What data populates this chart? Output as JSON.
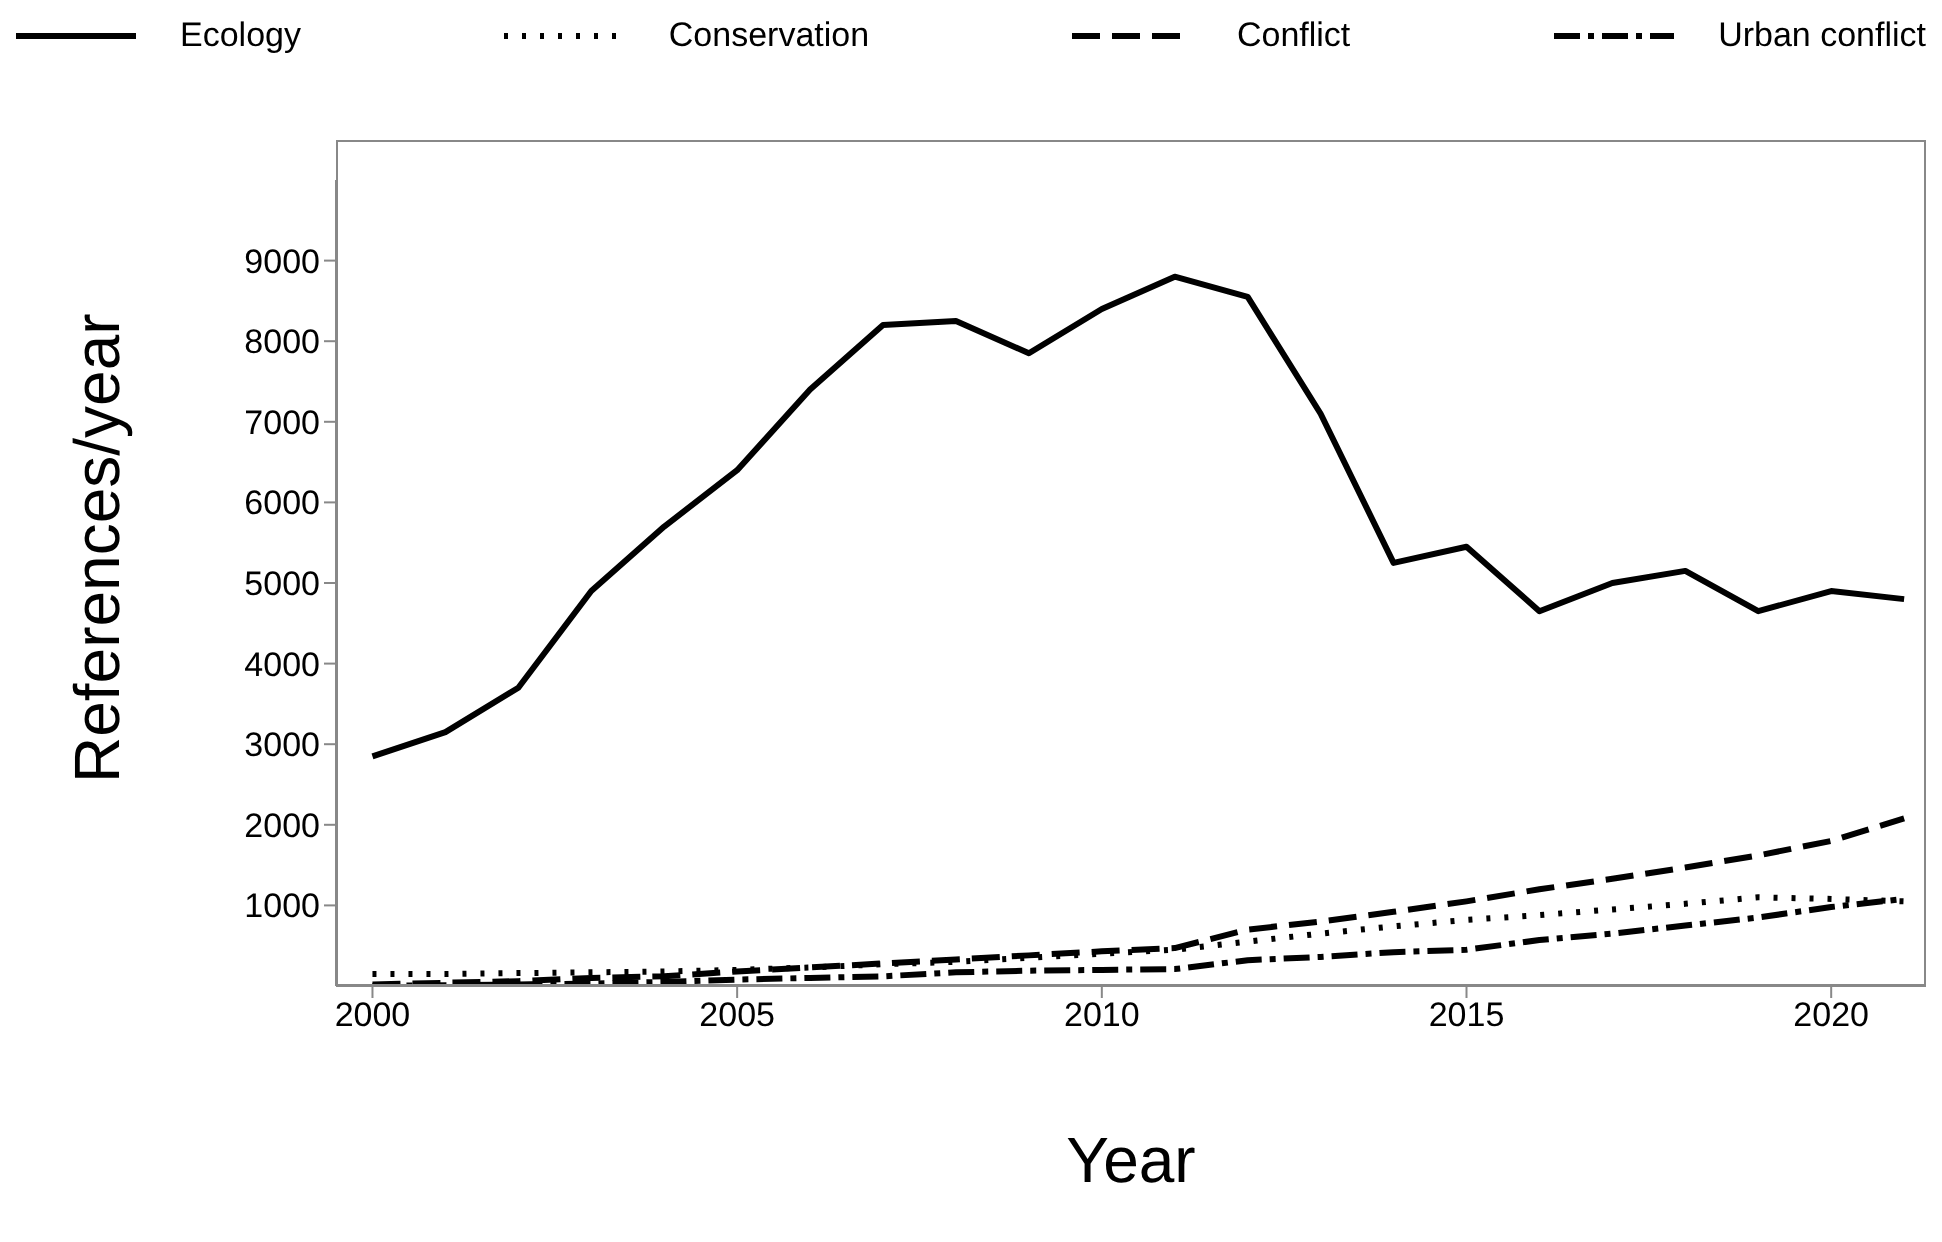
{
  "chart_data": {
    "type": "line",
    "xlabel": "Year",
    "ylabel": "References/year",
    "xlim": [
      1999.5,
      2021.3
    ],
    "xticks": [
      2000,
      2005,
      2010,
      2015,
      2020
    ],
    "ylim": [
      0,
      10000
    ],
    "yticks": [
      1000,
      2000,
      3000,
      4000,
      5000,
      6000,
      7000,
      8000,
      9000
    ],
    "grid": false,
    "legend": "top",
    "marker": "none",
    "x": [
      2000,
      2001,
      2002,
      2003,
      2004,
      2005,
      2006,
      2007,
      2008,
      2009,
      2010,
      2011,
      2012,
      2013,
      2014,
      2015,
      2016,
      2017,
      2018,
      2019,
      2020,
      2021
    ],
    "series": [
      {
        "name": "Ecology",
        "color": "#000000",
        "line_style": "solid",
        "values": [
          2850,
          3150,
          3700,
          4900,
          5700,
          6400,
          7400,
          8200,
          8250,
          7850,
          8400,
          8800,
          8550,
          7100,
          5250,
          5450,
          4650,
          5000,
          5150,
          4650,
          4900,
          4800
        ]
      },
      {
        "name": "Conservation",
        "color": "#000000",
        "line_style": "dotted",
        "values": [
          150,
          150,
          160,
          170,
          180,
          200,
          230,
          270,
          300,
          350,
          400,
          450,
          550,
          650,
          740,
          820,
          880,
          950,
          1020,
          1100,
          1080,
          1050
        ]
      },
      {
        "name": "Conflict",
        "color": "#000000",
        "line_style": "dashed",
        "values": [
          20,
          40,
          60,
          100,
          120,
          180,
          230,
          280,
          330,
          380,
          430,
          470,
          700,
          800,
          920,
          1050,
          1200,
          1330,
          1470,
          1620,
          1800,
          2080
        ]
      },
      {
        "name": "Urban conflict",
        "color": "#000000",
        "line_style": "dashdot",
        "values": [
          0,
          10,
          20,
          30,
          50,
          80,
          100,
          120,
          170,
          190,
          200,
          210,
          320,
          360,
          420,
          450,
          570,
          650,
          750,
          850,
          980,
          1080
        ]
      }
    ]
  }
}
